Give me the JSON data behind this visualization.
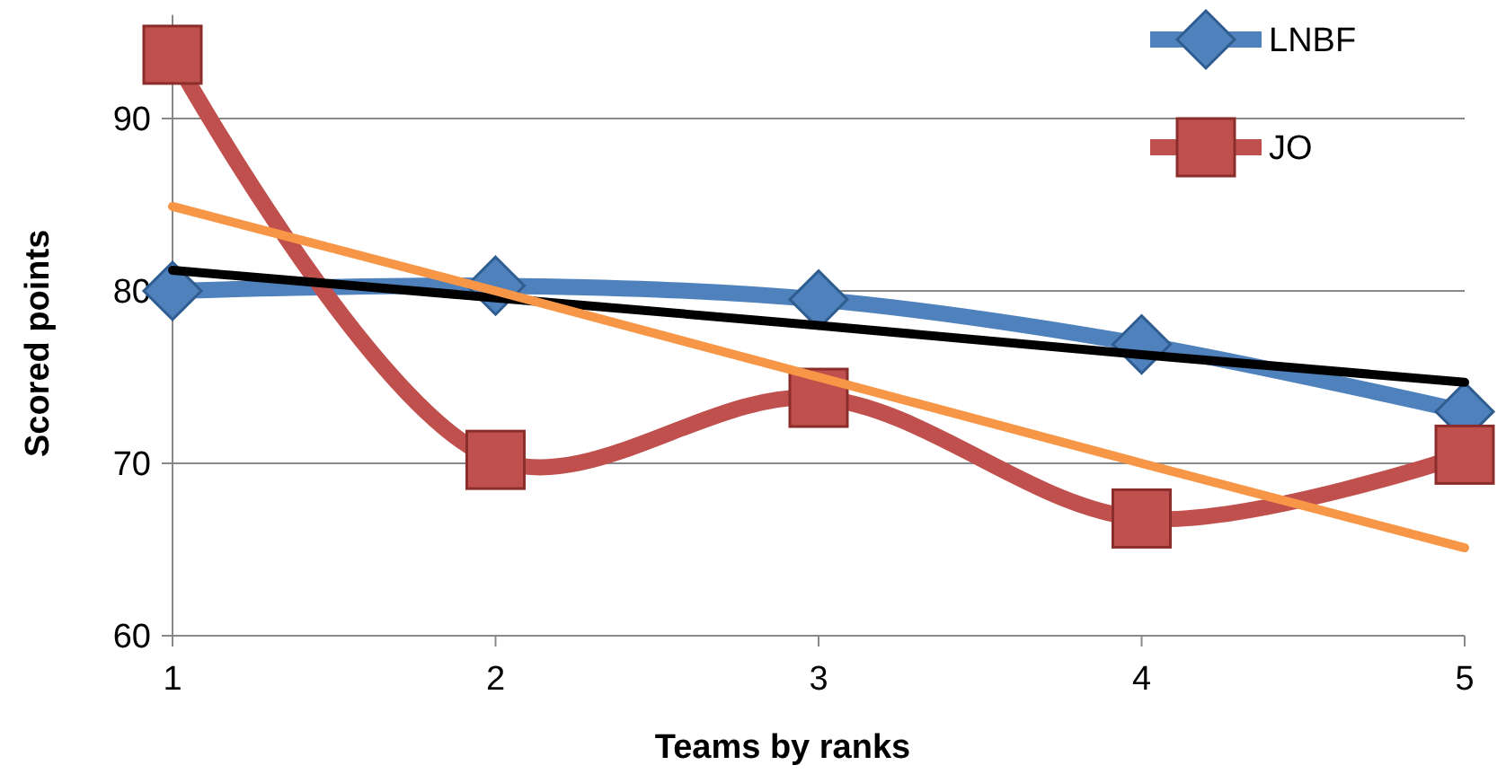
{
  "chart_data": {
    "type": "line",
    "xlabel": "Teams by ranks",
    "ylabel": "Scored points",
    "x": [
      1,
      2,
      3,
      4,
      5
    ],
    "series": [
      {
        "name": "LNBF",
        "color": "#4f81bd",
        "marker": "diamond",
        "values": [
          80,
          80.3,
          79.5,
          76.9,
          73
        ]
      },
      {
        "name": "JO",
        "color": "#c0504d",
        "marker": "square",
        "values": [
          93.7,
          70.2,
          73.8,
          66.8,
          70.5
        ]
      },
      {
        "color": "#000000",
        "marker": "none",
        "values": [
          81.2,
          79.6,
          78.0,
          76.3,
          74.7
        ]
      },
      {
        "color": "#f79646",
        "marker": "none",
        "values": [
          84.9,
          80.0,
          75.0,
          70.0,
          65.1
        ]
      }
    ],
    "xlim": [
      1,
      5
    ],
    "xticks": [
      1,
      2,
      3,
      4,
      5
    ],
    "ylim": [
      60,
      96
    ],
    "yticks": [
      60,
      70,
      80,
      90
    ],
    "grid": "y",
    "legend": "top right"
  }
}
